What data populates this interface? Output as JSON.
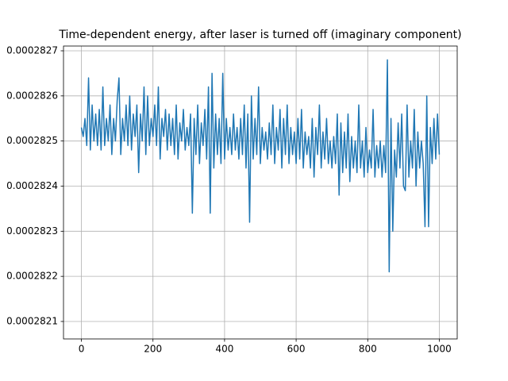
{
  "chart_data": {
    "type": "line",
    "title": "Time-dependent energy, after laser is turned off (imaginary component)",
    "xlim": [
      -50,
      1050
    ],
    "xticks": [
      0,
      200,
      400,
      600,
      800,
      1000
    ],
    "ylim": [
      0.00028206127,
      0.00028271056
    ],
    "yticks": [
      0.0002821,
      0.0002822,
      0.0002823,
      0.0002824,
      0.0002825,
      0.0002826,
      0.0002827
    ],
    "grid": true,
    "series": [
      {
        "color": "#1f77b4",
        "x": [
          0,
          5,
          10,
          15,
          20,
          25,
          30,
          35,
          40,
          45,
          50,
          55,
          60,
          65,
          70,
          75,
          80,
          85,
          90,
          95,
          100,
          105,
          110,
          115,
          120,
          125,
          130,
          135,
          140,
          145,
          150,
          155,
          160,
          165,
          170,
          175,
          180,
          185,
          190,
          195,
          200,
          205,
          210,
          215,
          220,
          225,
          230,
          235,
          240,
          245,
          250,
          255,
          260,
          265,
          270,
          275,
          280,
          285,
          290,
          295,
          300,
          305,
          310,
          315,
          320,
          325,
          330,
          335,
          340,
          345,
          350,
          355,
          360,
          365,
          370,
          375,
          380,
          385,
          390,
          395,
          400,
          405,
          410,
          415,
          420,
          425,
          430,
          435,
          440,
          445,
          450,
          455,
          460,
          465,
          470,
          475,
          480,
          485,
          490,
          495,
          500,
          505,
          510,
          515,
          520,
          525,
          530,
          535,
          540,
          545,
          550,
          555,
          560,
          565,
          570,
          575,
          580,
          585,
          590,
          595,
          600,
          605,
          610,
          615,
          620,
          625,
          630,
          635,
          640,
          645,
          650,
          655,
          660,
          665,
          670,
          675,
          680,
          685,
          690,
          695,
          700,
          705,
          710,
          715,
          720,
          725,
          730,
          735,
          740,
          745,
          750,
          755,
          760,
          765,
          770,
          775,
          780,
          785,
          790,
          795,
          800,
          805,
          810,
          815,
          820,
          825,
          830,
          835,
          840,
          845,
          850,
          855,
          860,
          865,
          870,
          875,
          880,
          885,
          890,
          895,
          900,
          905,
          910,
          915,
          920,
          925,
          930,
          935,
          940,
          945,
          950,
          955,
          960,
          965,
          970,
          975,
          980,
          985,
          990,
          995,
          1000
        ],
        "values": [
          0.00028253,
          0.00028251,
          0.00028255,
          0.00028249,
          0.00028264,
          0.00028248,
          0.00028258,
          0.0002825,
          0.00028256,
          0.00028249,
          0.00028257,
          0.00028248,
          0.00028262,
          0.00028249,
          0.00028255,
          0.0002825,
          0.00028258,
          0.00028247,
          0.00028255,
          0.0002825,
          0.00028259,
          0.00028264,
          0.00028247,
          0.00028255,
          0.0002825,
          0.00028258,
          0.00028249,
          0.0002826,
          0.00028248,
          0.00028256,
          0.00028251,
          0.00028258,
          0.00028243,
          0.00028256,
          0.0002825,
          0.00028262,
          0.00028247,
          0.0002826,
          0.00028249,
          0.00028255,
          0.00028251,
          0.00028258,
          0.00028249,
          0.00028262,
          0.00028246,
          0.00028255,
          0.00028251,
          0.00028257,
          0.00028248,
          0.00028256,
          0.00028249,
          0.00028255,
          0.00028247,
          0.00028258,
          0.00028246,
          0.00028254,
          0.0002825,
          0.00028257,
          0.00028248,
          0.00028253,
          0.00028249,
          0.00028256,
          0.00028234,
          0.00028255,
          0.00028247,
          0.00028258,
          0.00028245,
          0.00028254,
          0.00028249,
          0.00028257,
          0.00028246,
          0.00028262,
          0.00028234,
          0.00028265,
          0.00028244,
          0.00028256,
          0.00028247,
          0.00028255,
          0.00028245,
          0.00028265,
          0.00028246,
          0.00028255,
          0.00028248,
          0.00028253,
          0.00028247,
          0.00028256,
          0.00028248,
          0.00028253,
          0.00028246,
          0.00028255,
          0.00028247,
          0.00028258,
          0.00028244,
          0.00028256,
          0.00028232,
          0.0002826,
          0.00028246,
          0.00028255,
          0.00028247,
          0.00028262,
          0.00028245,
          0.00028253,
          0.00028248,
          0.00028252,
          0.00028246,
          0.00028254,
          0.00028247,
          0.00028258,
          0.00028245,
          0.00028253,
          0.00028248,
          0.00028257,
          0.00028244,
          0.00028255,
          0.00028247,
          0.00028258,
          0.00028245,
          0.00028253,
          0.00028247,
          0.00028252,
          0.00028245,
          0.00028255,
          0.00028246,
          0.00028257,
          0.00028244,
          0.00028252,
          0.00028247,
          0.00028251,
          0.00028244,
          0.00028255,
          0.00028242,
          0.00028253,
          0.00028247,
          0.00028258,
          0.00028244,
          0.00028252,
          0.00028246,
          0.00028255,
          0.00028245,
          0.0002825,
          0.00028244,
          0.00028251,
          0.00028245,
          0.00028256,
          0.00028238,
          0.00028254,
          0.00028243,
          0.00028252,
          0.00028244,
          0.00028256,
          0.00028241,
          0.00028251,
          0.00028244,
          0.0002825,
          0.00028243,
          0.00028258,
          0.00028244,
          0.0002825,
          0.00028242,
          0.00028253,
          0.00028243,
          0.00028248,
          0.00028244,
          0.00028257,
          0.00028242,
          0.00028249,
          0.00028244,
          0.0002825,
          0.00028242,
          0.00028249,
          0.00028243,
          0.00028268,
          0.00028221,
          0.00028255,
          0.0002823,
          0.00028248,
          0.00028242,
          0.00028254,
          0.00028244,
          0.00028256,
          0.0002824,
          0.00028239,
          0.00028258,
          0.00028242,
          0.0002825,
          0.00028244,
          0.00028257,
          0.0002824,
          0.00028252,
          0.00028244,
          0.0002825,
          0.00028245,
          0.00028231,
          0.0002826,
          0.00028231,
          0.00028253,
          0.00028245,
          0.00028255,
          0.00028246,
          0.00028256,
          0.00028247
        ]
      }
    ]
  }
}
